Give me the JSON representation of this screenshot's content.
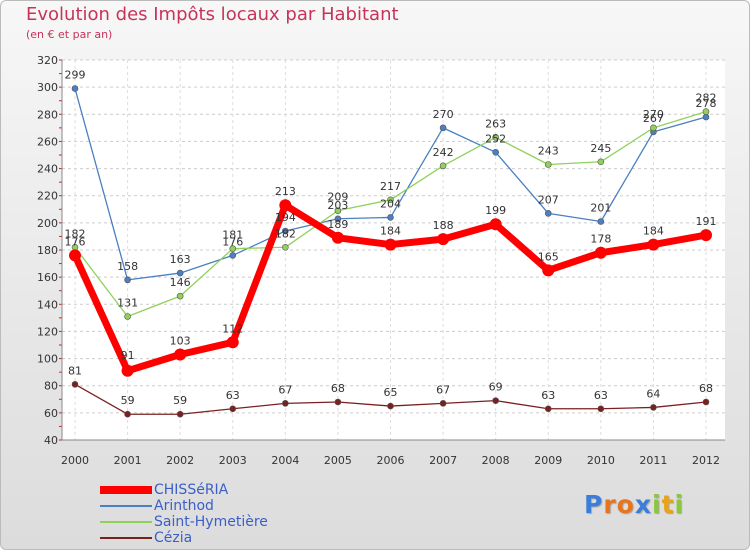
{
  "header": {
    "title": "Evolution des Impôts locaux par Habitant",
    "subtitle": "(en € et par an)"
  },
  "logo": {
    "text": "Proxiti"
  },
  "chart_data": {
    "type": "line",
    "title": "Evolution des Impôts locaux par Habitant",
    "subtitle": "(en € et par an)",
    "xlabel": "",
    "ylabel": "",
    "x": [
      "2000",
      "2001",
      "2002",
      "2003",
      "2004",
      "2005",
      "2006",
      "2007",
      "2008",
      "2009",
      "2010",
      "2011",
      "2012"
    ],
    "ylim": [
      40,
      320
    ],
    "yticks": [
      40,
      60,
      80,
      100,
      120,
      140,
      160,
      180,
      200,
      220,
      240,
      260,
      280,
      300,
      320
    ],
    "grid": "horizontal dashed",
    "legend": "bottom-left",
    "series": [
      {
        "name": "CHISSéRIA",
        "color": "#ff0000",
        "values": [
          176,
          91,
          103,
          112,
          213,
          189,
          184,
          188,
          199,
          165,
          178,
          184,
          191
        ]
      },
      {
        "name": "Arinthod",
        "color": "#4a7fc1",
        "values": [
          299,
          158,
          163,
          176,
          194,
          203,
          204,
          270,
          252,
          207,
          201,
          267,
          278
        ]
      },
      {
        "name": "Saint-Hymetière",
        "color": "#8fd15a",
        "values": [
          182,
          131,
          146,
          181,
          182,
          209,
          217,
          242,
          263,
          243,
          245,
          270,
          282
        ]
      },
      {
        "name": "Cézia",
        "color": "#7a2020",
        "values": [
          81,
          59,
          59,
          63,
          67,
          68,
          65,
          67,
          69,
          63,
          63,
          64,
          68
        ]
      }
    ]
  }
}
